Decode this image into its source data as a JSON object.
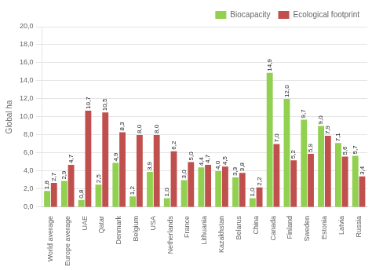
{
  "chart_data": {
    "type": "bar",
    "ylabel": "Global ha",
    "categories": [
      "World average",
      "Europe average",
      "UAE",
      "Qatar",
      "Denmark",
      "Belgium",
      "USA",
      "Netherlands",
      "France",
      "Lithuania",
      "Kazakhstan",
      "Belarus",
      "China",
      "Canada",
      "Finland",
      "Sweden",
      "Estonia",
      "Latvia",
      "Russia"
    ],
    "series": [
      {
        "name": "Biocapacity",
        "color": "#92d050",
        "values": [
          1.8,
          2.9,
          0.8,
          2.5,
          4.9,
          1.2,
          3.9,
          1.0,
          3.0,
          4.4,
          4.0,
          3.3,
          1.0,
          14.9,
          12.0,
          9.7,
          9.0,
          7.1,
          5.7
        ],
        "value_labels": [
          "1,8",
          "2,9",
          "0,8",
          "2,5",
          "4,9",
          "1,2",
          "3,9",
          "1,0",
          "3,0",
          "4,4",
          "4,0",
          "3,3",
          "1,0",
          "14,9",
          "12,0",
          "9,7",
          "9,0",
          "7,1",
          "5,7"
        ]
      },
      {
        "name": "Ecological footprint",
        "color": "#c0504d",
        "values": [
          2.7,
          4.7,
          10.7,
          10.5,
          8.3,
          8.0,
          8.0,
          6.2,
          5.0,
          4.7,
          4.5,
          3.8,
          2.2,
          7.0,
          5.2,
          5.9,
          7.9,
          5.6,
          3.4
        ],
        "value_labels": [
          "2,7",
          "4,7",
          "10,7",
          "10,5",
          "8,3",
          "8,0",
          "8,0",
          "6,2",
          "5,0",
          "4,7",
          "4,5",
          "3,8",
          "2,2",
          "7,0",
          "5,2",
          "5,9",
          "7,9",
          "5,6",
          "3,4"
        ]
      }
    ],
    "ylim": [
      0,
      20
    ],
    "yticks": [
      {
        "value": 0,
        "label": "0,0"
      },
      {
        "value": 2,
        "label": "2,0"
      },
      {
        "value": 4,
        "label": "4,0"
      },
      {
        "value": 6,
        "label": "6,0"
      },
      {
        "value": 8,
        "label": "8,0"
      },
      {
        "value": 10,
        "label": "10,0"
      },
      {
        "value": 12,
        "label": "12,0"
      },
      {
        "value": 14,
        "label": "14,0"
      },
      {
        "value": 16,
        "label": "16,0"
      },
      {
        "value": 18,
        "label": "18,0"
      },
      {
        "value": 20,
        "label": "20,0"
      }
    ],
    "grid": true,
    "legend": "upper right",
    "data_labels": true
  }
}
